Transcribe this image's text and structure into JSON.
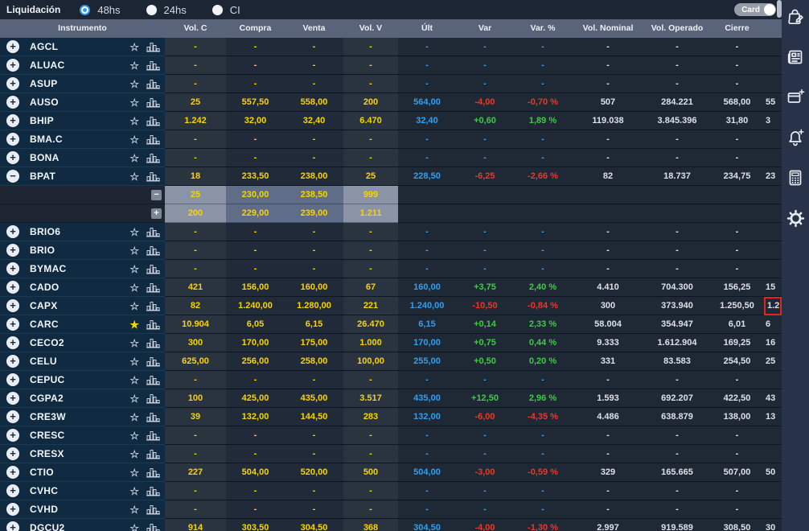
{
  "topbar": {
    "label": "Liquidación",
    "options": [
      {
        "label": "48hs",
        "selected": true
      },
      {
        "label": "24hs",
        "selected": false
      },
      {
        "label": "CI",
        "selected": false
      }
    ],
    "card_toggle_label": "Card",
    "card_toggle_on": true
  },
  "table": {
    "columns": [
      "Instrumento",
      "Vol. C",
      "Compra",
      "Venta",
      "Vol. V",
      "Últ",
      "Var",
      "Var. %",
      "Vol. Nominal",
      "Vol. Operado",
      "Cierre"
    ],
    "rows": [
      {
        "ticker": "AGCL",
        "starred": false,
        "expanded": false,
        "volC": "-",
        "compra": "-",
        "venta": "-",
        "volV": "-",
        "ult": "-",
        "var": "-",
        "varPct": "-",
        "nominal": "-",
        "operado": "-",
        "cierre": "-",
        "partial": ""
      },
      {
        "ticker": "ALUAC",
        "starred": false,
        "expanded": false,
        "volC": "-",
        "compra": "-",
        "venta": "-",
        "volV": "-",
        "ult": "-",
        "var": "-",
        "varPct": "-",
        "nominal": "-",
        "operado": "-",
        "cierre": "-",
        "partial": ""
      },
      {
        "ticker": "ASUP",
        "starred": false,
        "expanded": false,
        "volC": "-",
        "compra": "-",
        "venta": "-",
        "volV": "-",
        "ult": "-",
        "var": "-",
        "varPct": "-",
        "nominal": "-",
        "operado": "-",
        "cierre": "-",
        "partial": ""
      },
      {
        "ticker": "AUSO",
        "starred": false,
        "expanded": false,
        "volC": "25",
        "compra": "557,50",
        "venta": "558,00",
        "volV": "200",
        "ult": "564,00",
        "var": "-4,00",
        "varPct": "-0,70 %",
        "nominal": "507",
        "operado": "284.221",
        "cierre": "568,00",
        "partial": "55"
      },
      {
        "ticker": "BHIP",
        "starred": false,
        "expanded": false,
        "volC": "1.242",
        "compra": "32,00",
        "venta": "32,40",
        "volV": "6.470",
        "ult": "32,40",
        "var": "+0,60",
        "varPct": "1,89 %",
        "nominal": "119.038",
        "operado": "3.845.396",
        "cierre": "31,80",
        "partial": "3"
      },
      {
        "ticker": "BMA.C",
        "starred": false,
        "expanded": false,
        "volC": "-",
        "compra": "-",
        "venta": "-",
        "volV": "-",
        "ult": "-",
        "var": "-",
        "varPct": "-",
        "nominal": "-",
        "operado": "-",
        "cierre": "-",
        "partial": ""
      },
      {
        "ticker": "BONA",
        "starred": false,
        "expanded": false,
        "volC": "-",
        "compra": "-",
        "venta": "-",
        "volV": "-",
        "ult": "-",
        "var": "-",
        "varPct": "-",
        "nominal": "-",
        "operado": "-",
        "cierre": "-",
        "partial": ""
      },
      {
        "ticker": "BPAT",
        "starred": false,
        "expanded": true,
        "volC": "18",
        "compra": "233,50",
        "venta": "238,00",
        "volV": "25",
        "ult": "228,50",
        "var": "-6,25",
        "varPct": "-2,66 %",
        "nominal": "82",
        "operado": "18.737",
        "cierre": "234,75",
        "partial": "23",
        "depth": [
          {
            "volC": "25",
            "compra": "230,00",
            "venta": "238,50",
            "volV": "999",
            "button": "−"
          },
          {
            "volC": "200",
            "compra": "229,00",
            "venta": "239,00",
            "volV": "1.211",
            "button": "+"
          }
        ]
      },
      {
        "ticker": "BRIO6",
        "starred": false,
        "expanded": false,
        "volC": "-",
        "compra": "-",
        "venta": "-",
        "volV": "-",
        "ult": "-",
        "var": "-",
        "varPct": "-",
        "nominal": "-",
        "operado": "-",
        "cierre": "-",
        "partial": ""
      },
      {
        "ticker": "BRIO",
        "starred": false,
        "expanded": false,
        "volC": "-",
        "compra": "-",
        "venta": "-",
        "volV": "-",
        "ult": "-",
        "var": "-",
        "varPct": "-",
        "nominal": "-",
        "operado": "-",
        "cierre": "-",
        "partial": ""
      },
      {
        "ticker": "BYMAC",
        "starred": false,
        "expanded": false,
        "volC": "-",
        "compra": "-",
        "venta": "-",
        "volV": "-",
        "ult": "-",
        "var": "-",
        "varPct": "-",
        "nominal": "-",
        "operado": "-",
        "cierre": "-",
        "partial": ""
      },
      {
        "ticker": "CADO",
        "starred": false,
        "expanded": false,
        "volC": "421",
        "compra": "156,00",
        "venta": "160,00",
        "volV": "67",
        "ult": "160,00",
        "var": "+3,75",
        "varPct": "2,40 %",
        "nominal": "4.410",
        "operado": "704.300",
        "cierre": "156,25",
        "partial": "15"
      },
      {
        "ticker": "CAPX",
        "starred": false,
        "expanded": false,
        "volC": "82",
        "compra": "1.240,00",
        "venta": "1.280,00",
        "volV": "221",
        "ult": "1.240,00",
        "var": "-10,50",
        "varPct": "-0,84 %",
        "nominal": "300",
        "operado": "373.940",
        "cierre": "1.250,50",
        "partial": "1.2",
        "partial_highlight": true
      },
      {
        "ticker": "CARC",
        "starred": true,
        "expanded": false,
        "volC": "10.904",
        "compra": "6,05",
        "venta": "6,15",
        "volV": "26.470",
        "ult": "6,15",
        "var": "+0,14",
        "varPct": "2,33 %",
        "nominal": "58.004",
        "operado": "354.947",
        "cierre": "6,01",
        "partial": "6"
      },
      {
        "ticker": "CECO2",
        "starred": false,
        "expanded": false,
        "volC": "300",
        "compra": "170,00",
        "venta": "175,00",
        "volV": "1.000",
        "ult": "170,00",
        "var": "+0,75",
        "varPct": "0,44 %",
        "nominal": "9.333",
        "operado": "1.612.904",
        "cierre": "169,25",
        "partial": "16"
      },
      {
        "ticker": "CELU",
        "starred": false,
        "expanded": false,
        "volC": "625,00",
        "compra": "256,00",
        "venta": "258,00",
        "volV": "100,00",
        "ult": "255,00",
        "var": "+0,50",
        "varPct": "0,20 %",
        "nominal": "331",
        "operado": "83.583",
        "cierre": "254,50",
        "partial": "25"
      },
      {
        "ticker": "CEPUC",
        "starred": false,
        "expanded": false,
        "volC": "-",
        "compra": "-",
        "venta": "-",
        "volV": "-",
        "ult": "-",
        "var": "-",
        "varPct": "-",
        "nominal": "-",
        "operado": "-",
        "cierre": "-",
        "partial": ""
      },
      {
        "ticker": "CGPA2",
        "starred": false,
        "expanded": false,
        "volC": "100",
        "compra": "425,00",
        "venta": "435,00",
        "volV": "3.517",
        "ult": "435,00",
        "var": "+12,50",
        "varPct": "2,96 %",
        "nominal": "1.593",
        "operado": "692.207",
        "cierre": "422,50",
        "partial": "43"
      },
      {
        "ticker": "CRE3W",
        "starred": false,
        "expanded": false,
        "volC": "39",
        "compra": "132,00",
        "venta": "144,50",
        "volV": "283",
        "ult": "132,00",
        "var": "-6,00",
        "varPct": "-4,35 %",
        "nominal": "4.486",
        "operado": "638.879",
        "cierre": "138,00",
        "partial": "13"
      },
      {
        "ticker": "CRESC",
        "starred": false,
        "expanded": false,
        "volC": "-",
        "compra": "-",
        "venta": "-",
        "volV": "-",
        "ult": "-",
        "var": "-",
        "varPct": "-",
        "nominal": "-",
        "operado": "-",
        "cierre": "-",
        "partial": ""
      },
      {
        "ticker": "CRESX",
        "starred": false,
        "expanded": false,
        "volC": "-",
        "compra": "-",
        "venta": "-",
        "volV": "-",
        "ult": "-",
        "var": "-",
        "varPct": "-",
        "nominal": "-",
        "operado": "-",
        "cierre": "-",
        "partial": ""
      },
      {
        "ticker": "CTIO",
        "starred": false,
        "expanded": false,
        "volC": "227",
        "compra": "504,00",
        "venta": "520,00",
        "volV": "500",
        "ult": "504,00",
        "var": "-3,00",
        "varPct": "-0,59 %",
        "nominal": "329",
        "operado": "165.665",
        "cierre": "507,00",
        "partial": "50"
      },
      {
        "ticker": "CVHC",
        "starred": false,
        "expanded": false,
        "volC": "-",
        "compra": "-",
        "venta": "-",
        "volV": "-",
        "ult": "-",
        "var": "-",
        "varPct": "-",
        "nominal": "-",
        "operado": "-",
        "cierre": "-",
        "partial": ""
      },
      {
        "ticker": "CVHD",
        "starred": false,
        "expanded": false,
        "volC": "-",
        "compra": "-",
        "venta": "-",
        "volV": "-",
        "ult": "-",
        "var": "-",
        "varPct": "-",
        "nominal": "-",
        "operado": "-",
        "cierre": "-",
        "partial": ""
      },
      {
        "ticker": "DGCU2",
        "starred": false,
        "expanded": false,
        "volC": "914",
        "compra": "303,50",
        "venta": "304,50",
        "volV": "368",
        "ult": "304,50",
        "var": "-4,00",
        "varPct": "-1,30 %",
        "nominal": "2.997",
        "operado": "919.589",
        "cierre": "308,50",
        "partial": "30"
      }
    ]
  },
  "sidebar": {
    "icons": [
      "portfolio-edit",
      "news",
      "add-panel",
      "add-alert",
      "calculator",
      "settings"
    ]
  },
  "colors": {
    "price_yellow": "#f8d400",
    "last_blue": "#2fa0f2",
    "negative_red": "#e8392b",
    "positive_green": "#3fcb43",
    "accent_blue": "#2e9af0",
    "highlight_box": "#e1251a",
    "header_bg": "#59647b",
    "instrument_col_bg": "#0f2a41"
  }
}
